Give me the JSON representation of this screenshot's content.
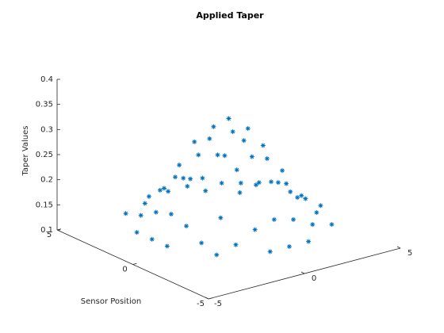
{
  "chart_data": {
    "type": "scatter3",
    "title": "Applied Taper",
    "ylabel": "Sensor Position",
    "zlabel": "Taper Values",
    "color": "#0072bd",
    "xlim": [
      -5,
      5
    ],
    "ylim": [
      -5,
      5
    ],
    "zlim": [
      0.1,
      0.4
    ],
    "xticks": [
      -5,
      0,
      5
    ],
    "yticks": [
      -5,
      0,
      5
    ],
    "zticks": [
      0.1,
      0.15,
      0.2,
      0.25,
      0.3,
      0.35,
      0.4
    ],
    "x": [
      -4,
      -4,
      -4,
      -3,
      -3,
      -3,
      -3,
      -3,
      -3,
      -3,
      -2,
      -2,
      -2,
      -2,
      -2,
      -2,
      -2,
      -1,
      -1,
      -1,
      -1,
      -1,
      -1,
      -1,
      -1,
      -1,
      0,
      0,
      0,
      0,
      0,
      0,
      0,
      0,
      0,
      1,
      1,
      1,
      1,
      1,
      1,
      1,
      1,
      1,
      2,
      2,
      2,
      2,
      2,
      2,
      2,
      3,
      3,
      3,
      3,
      3,
      3,
      3,
      4,
      4,
      4
    ],
    "y": [
      -1,
      0,
      1,
      -3,
      -2,
      -1,
      0,
      1,
      2,
      3,
      -3,
      -2,
      -1,
      0,
      1,
      2,
      3,
      -4,
      -3,
      -2,
      -1,
      0,
      1,
      2,
      3,
      4,
      -4,
      -3,
      -2,
      -1,
      0,
      1,
      2,
      3,
      4,
      -4,
      -3,
      -2,
      -1,
      0,
      1,
      2,
      3,
      4,
      -3,
      -2,
      -1,
      0,
      1,
      2,
      3,
      -3,
      -2,
      -1,
      0,
      1,
      2,
      3,
      -1,
      0,
      1
    ],
    "z": [
      0.14,
      0.14,
      0.14,
      0.14,
      0.15,
      0.17,
      0.18,
      0.17,
      0.15,
      0.14,
      0.15,
      0.19,
      0.23,
      0.24,
      0.23,
      0.19,
      0.15,
      0.14,
      0.17,
      0.23,
      0.29,
      0.31,
      0.29,
      0.23,
      0.17,
      0.14,
      0.14,
      0.18,
      0.24,
      0.31,
      0.34,
      0.31,
      0.24,
      0.18,
      0.14,
      0.14,
      0.17,
      0.23,
      0.29,
      0.31,
      0.29,
      0.23,
      0.17,
      0.14,
      0.15,
      0.19,
      0.23,
      0.24,
      0.23,
      0.19,
      0.15,
      0.14,
      0.15,
      0.17,
      0.18,
      0.17,
      0.15,
      0.14,
      0.14,
      0.14,
      0.14
    ]
  }
}
